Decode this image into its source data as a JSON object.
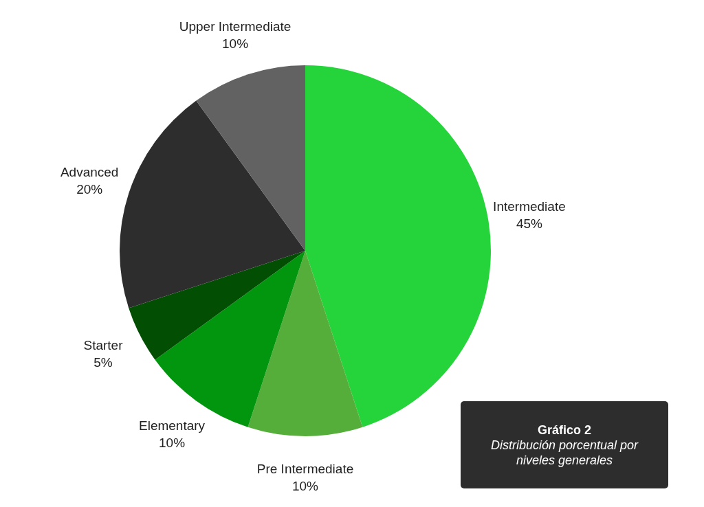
{
  "chart_data": {
    "type": "pie",
    "title": "Gráfico 2",
    "subtitle": "Distribución porcentual por niveles generales",
    "categories": [
      "Intermediate",
      "Pre Intermediate",
      "Elementary",
      "Starter",
      "Advanced",
      "Upper Intermediate"
    ],
    "values": [
      45,
      10,
      10,
      5,
      20,
      10
    ],
    "colors": [
      "#25d43a",
      "#55ae3a",
      "#02960f",
      "#024f04",
      "#2d2d2d",
      "#626262"
    ],
    "value_labels": [
      "45%",
      "10%",
      "10%",
      "5%",
      "20%",
      "10%"
    ]
  }
}
